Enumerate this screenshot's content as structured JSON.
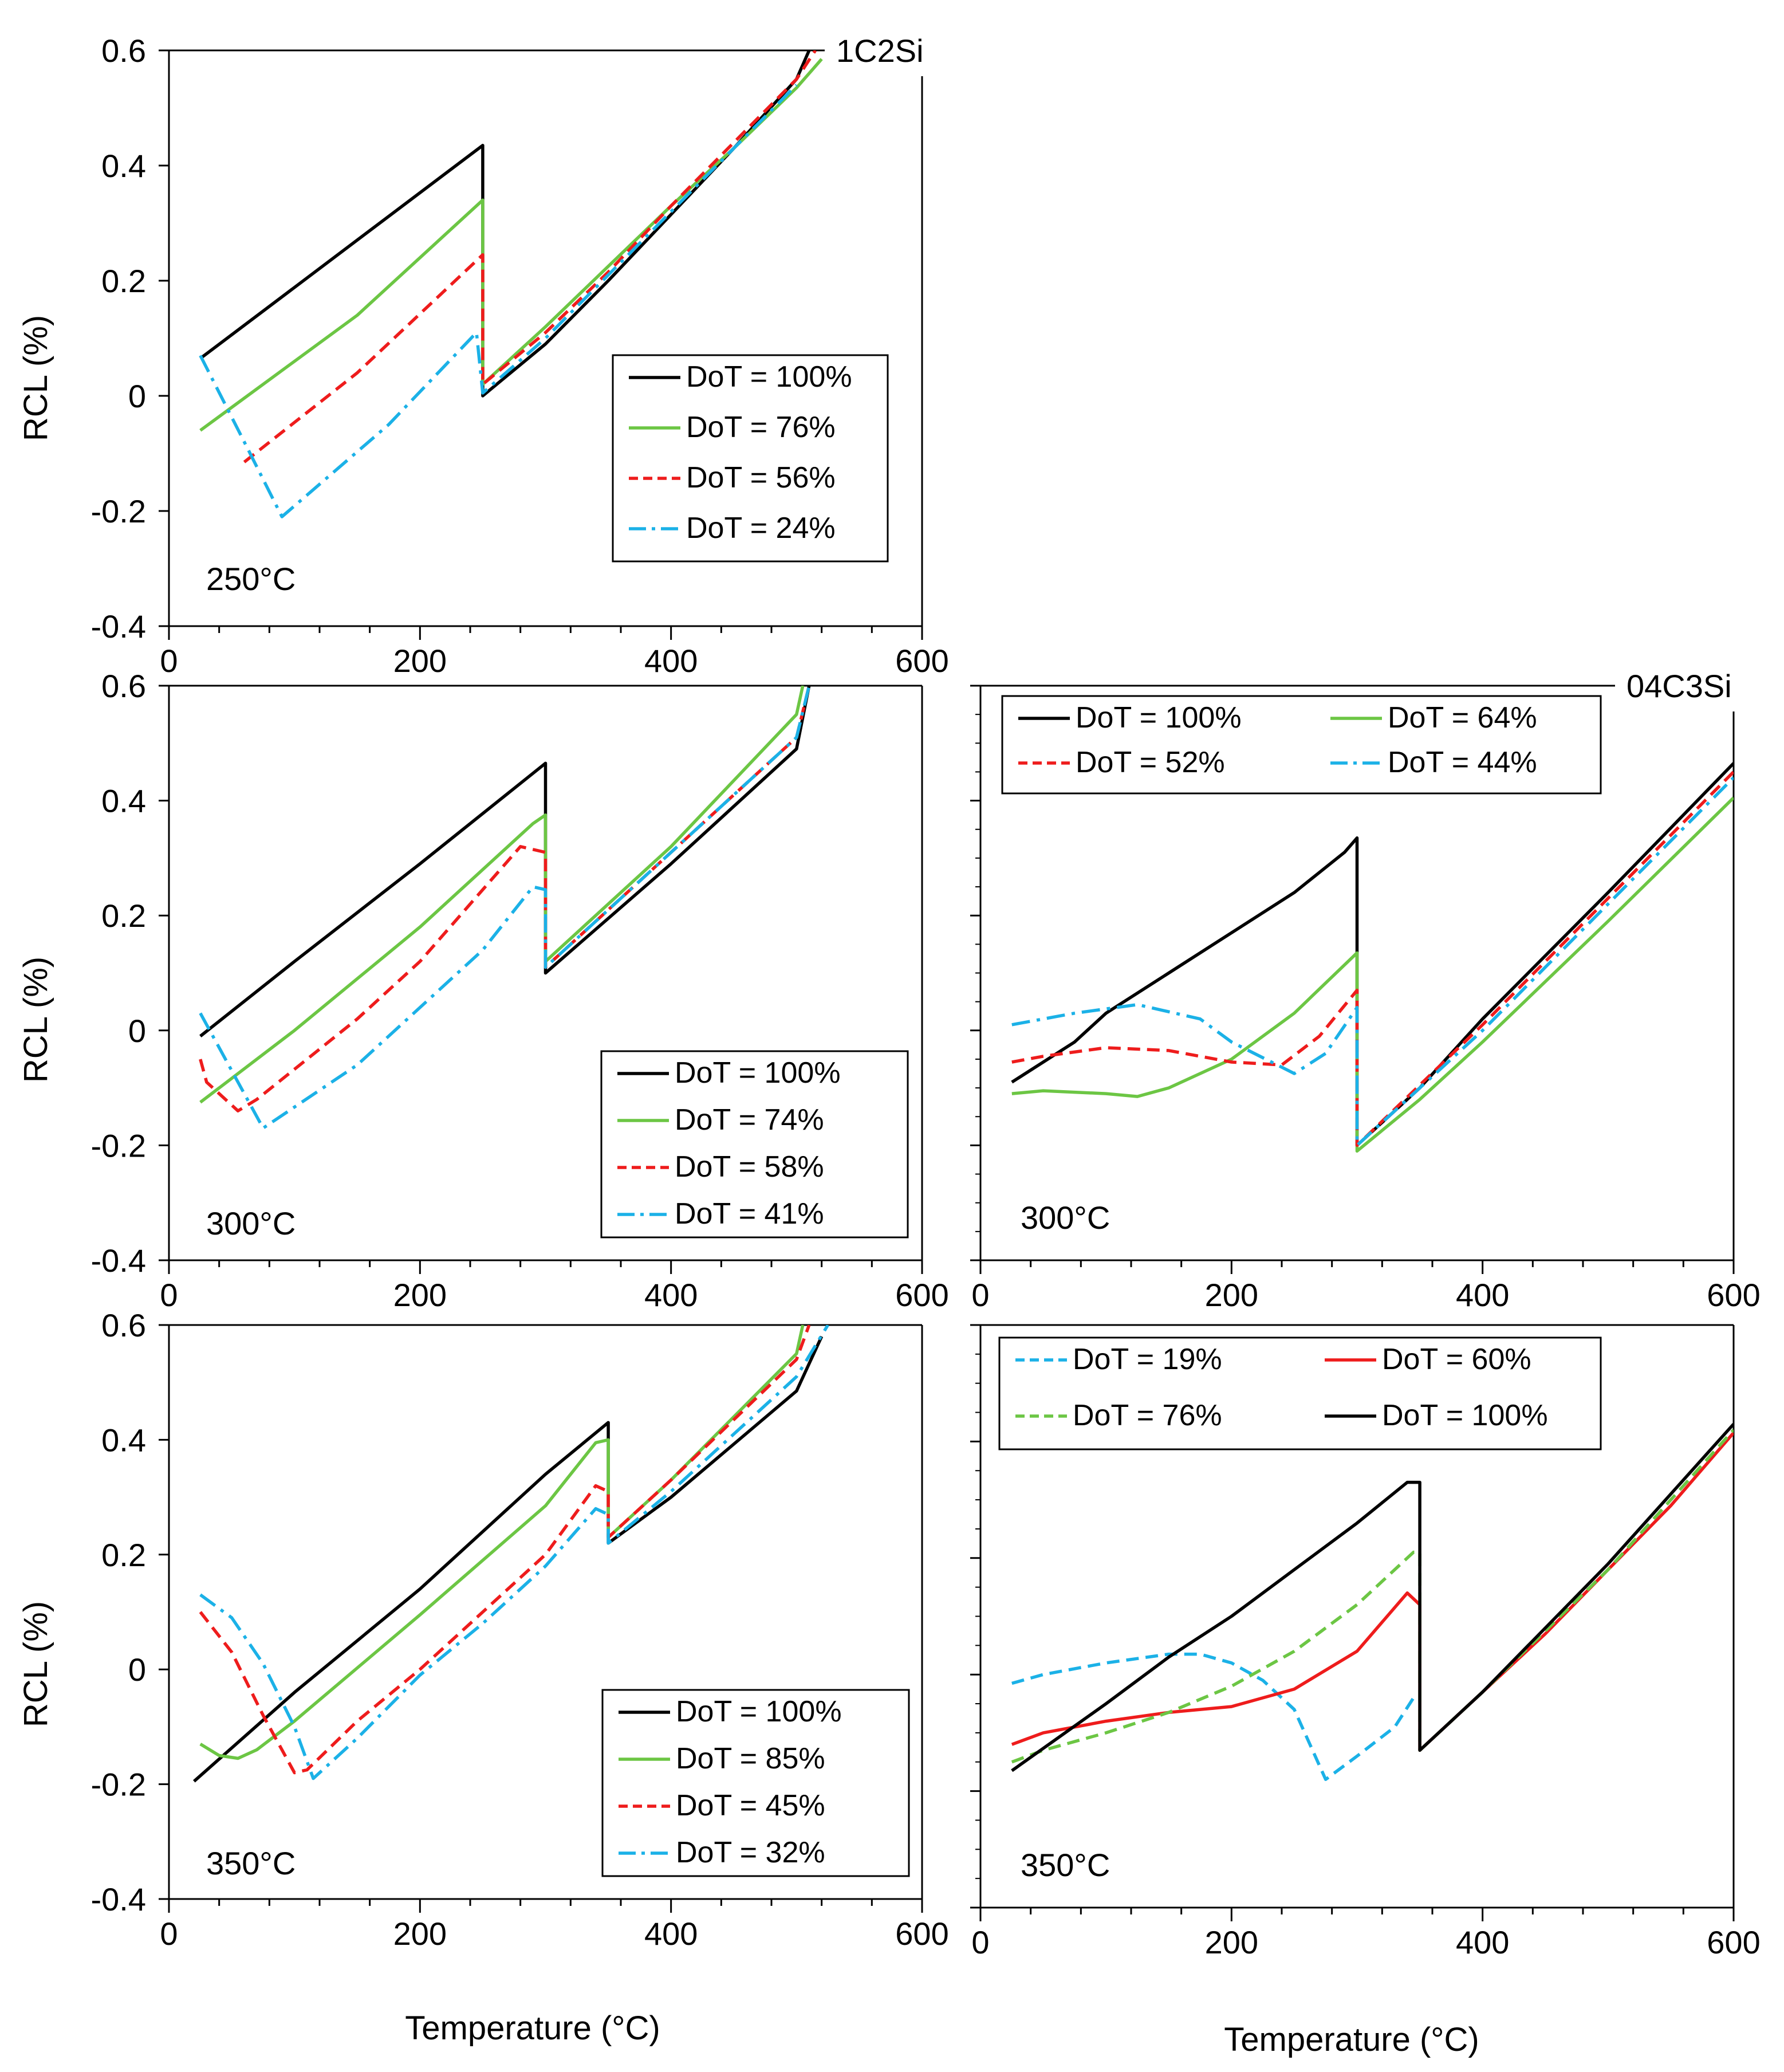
{
  "figure": {
    "ylabel": "RCL (%)",
    "xlabel": "Temperature (°C)",
    "colors": {
      "black": "#000000",
      "green": "#6cc644",
      "red": "#ee1c1c",
      "cyan": "#1bb1e7"
    }
  },
  "chart_data": [
    {
      "id": "p1",
      "type": "line",
      "material": "1C2Si",
      "condition": "250°C",
      "xlim": [
        0,
        600
      ],
      "ylim": [
        -0.4,
        0.6
      ],
      "xticks": [
        "0",
        "200",
        "400",
        "600"
      ],
      "yticks": [
        "-0.4",
        "-0.2",
        "0",
        "0.2",
        "0.4",
        "0.6"
      ],
      "legend": {
        "columns": 1,
        "position": "center-right"
      },
      "series": [
        {
          "name": "DoT = 100%",
          "color": "#000000",
          "style": "solid",
          "x": [
            25,
            250,
            250,
            300,
            350,
            400,
            450,
            500,
            510
          ],
          "y": [
            0.065,
            0.435,
            0.0,
            0.09,
            0.2,
            0.315,
            0.43,
            0.55,
            0.6
          ]
        },
        {
          "name": "DoT = 76%",
          "color": "#6cc644",
          "style": "solid",
          "x": [
            25,
            50,
            150,
            250,
            250,
            300,
            350,
            400,
            450,
            500,
            520
          ],
          "y": [
            -0.06,
            -0.02,
            0.14,
            0.34,
            0.02,
            0.12,
            0.225,
            0.33,
            0.43,
            0.535,
            0.585
          ]
        },
        {
          "name": "DoT = 56%",
          "color": "#ee1c1c",
          "style": "dash",
          "x": [
            60,
            150,
            250,
            250,
            300,
            350,
            400,
            450,
            500,
            515
          ],
          "y": [
            -0.115,
            0.04,
            0.245,
            0.02,
            0.11,
            0.215,
            0.33,
            0.44,
            0.55,
            0.6
          ]
        },
        {
          "name": "DoT = 24%",
          "color": "#1bb1e7",
          "style": "dashdot",
          "x": [
            25,
            60,
            90,
            175,
            245,
            250,
            300,
            350,
            400,
            450,
            500
          ],
          "y": [
            0.07,
            -0.08,
            -0.21,
            -0.05,
            0.11,
            0.005,
            0.1,
            0.21,
            0.32,
            0.43,
            0.54
          ]
        }
      ]
    },
    {
      "id": "p2",
      "type": "line",
      "material": "1C2Si",
      "condition": "300°C",
      "xlim": [
        0,
        600
      ],
      "ylim": [
        -0.4,
        0.6
      ],
      "xticks": [
        "0",
        "200",
        "400",
        "600"
      ],
      "yticks": [
        "-0.4",
        "-0.2",
        "0",
        "0.2",
        "0.4",
        "0.6"
      ],
      "legend": {
        "columns": 1,
        "position": "bottom-right"
      },
      "series": [
        {
          "name": "DoT = 100%",
          "color": "#000000",
          "style": "solid",
          "x": [
            25,
            100,
            200,
            300,
            300,
            400,
            500,
            510
          ],
          "y": [
            -0.01,
            0.12,
            0.29,
            0.465,
            0.1,
            0.29,
            0.49,
            0.6
          ]
        },
        {
          "name": "DoT = 74%",
          "color": "#6cc644",
          "style": "solid",
          "x": [
            25,
            100,
            200,
            290,
            300,
            300,
            400,
            450,
            500,
            505
          ],
          "y": [
            -0.125,
            0.0,
            0.18,
            0.36,
            0.375,
            0.12,
            0.32,
            0.435,
            0.55,
            0.6
          ]
        },
        {
          "name": "DoT = 58%",
          "color": "#ee1c1c",
          "style": "dash",
          "x": [
            25,
            30,
            55,
            70,
            150,
            200,
            280,
            300,
            300,
            400,
            500,
            510
          ],
          "y": [
            -0.05,
            -0.09,
            -0.14,
            -0.12,
            0.02,
            0.12,
            0.32,
            0.31,
            0.11,
            0.31,
            0.51,
            0.6
          ]
        },
        {
          "name": "DoT = 41%",
          "color": "#1bb1e7",
          "style": "dashdot",
          "x": [
            25,
            50,
            75,
            150,
            250,
            290,
            300,
            300,
            400,
            500,
            510
          ],
          "y": [
            0.03,
            -0.07,
            -0.17,
            -0.06,
            0.14,
            0.25,
            0.245,
            0.11,
            0.31,
            0.51,
            0.6
          ]
        }
      ]
    },
    {
      "id": "p3",
      "type": "line",
      "material": "04C3Si",
      "condition": "300°C",
      "xlim": [
        0,
        600
      ],
      "ylim": [
        -0.4,
        0.6
      ],
      "xticks": [
        "0",
        "200",
        "400",
        "600"
      ],
      "yticks": [],
      "legend": {
        "columns": 2,
        "position": "top-left"
      },
      "series": [
        {
          "name": "DoT = 100%",
          "color": "#000000",
          "style": "solid",
          "x": [
            25,
            75,
            100,
            150,
            200,
            250,
            290,
            300,
            300,
            350,
            400,
            500,
            600
          ],
          "y": [
            -0.09,
            -0.02,
            0.03,
            0.1,
            0.17,
            0.24,
            0.31,
            0.335,
            -0.2,
            -0.1,
            0.02,
            0.24,
            0.465
          ]
        },
        {
          "name": "DoT = 64%",
          "color": "#6cc644",
          "style": "solid",
          "x": [
            25,
            50,
            100,
            125,
            150,
            200,
            250,
            300,
            300,
            350,
            400,
            500,
            600
          ],
          "y": [
            -0.11,
            -0.105,
            -0.11,
            -0.115,
            -0.1,
            -0.05,
            0.03,
            0.135,
            -0.21,
            -0.12,
            -0.02,
            0.19,
            0.405
          ]
        },
        {
          "name": "DoT = 52%",
          "color": "#ee1c1c",
          "style": "dash",
          "x": [
            25,
            50,
            100,
            150,
            200,
            240,
            270,
            300,
            300,
            400,
            500,
            600
          ],
          "y": [
            -0.055,
            -0.045,
            -0.03,
            -0.035,
            -0.055,
            -0.06,
            -0.01,
            0.07,
            -0.2,
            0.01,
            0.23,
            0.45
          ]
        },
        {
          "name": "DoT = 44%",
          "color": "#1bb1e7",
          "style": "dashdot",
          "x": [
            25,
            75,
            125,
            175,
            200,
            250,
            275,
            300,
            300,
            400,
            500,
            600
          ],
          "y": [
            0.01,
            0.03,
            0.045,
            0.02,
            -0.02,
            -0.075,
            -0.04,
            0.04,
            -0.2,
            0.0,
            0.22,
            0.44
          ]
        }
      ]
    },
    {
      "id": "p4",
      "type": "line",
      "material": "1C2Si",
      "condition": "350°C",
      "xlim": [
        0,
        600
      ],
      "ylim": [
        -0.4,
        0.6
      ],
      "xticks": [
        "0",
        "200",
        "400",
        "600"
      ],
      "yticks": [
        "-0.4",
        "-0.2",
        "0",
        "0.2",
        "0.4",
        "0.6"
      ],
      "legend": {
        "columns": 1,
        "position": "bottom-right"
      },
      "series": [
        {
          "name": "DoT = 100%",
          "color": "#000000",
          "style": "solid",
          "x": [
            20,
            100,
            200,
            300,
            350,
            350,
            400,
            500,
            520
          ],
          "y": [
            -0.195,
            -0.04,
            0.14,
            0.34,
            0.43,
            0.22,
            0.3,
            0.485,
            0.58
          ]
        },
        {
          "name": "DoT = 85%",
          "color": "#6cc644",
          "style": "solid",
          "x": [
            25,
            40,
            55,
            70,
            100,
            200,
            300,
            340,
            350,
            350,
            400,
            500,
            505
          ],
          "y": [
            -0.13,
            -0.15,
            -0.155,
            -0.14,
            -0.09,
            0.095,
            0.285,
            0.395,
            0.4,
            0.23,
            0.33,
            0.55,
            0.6
          ]
        },
        {
          "name": "DoT = 45%",
          "color": "#ee1c1c",
          "style": "dash",
          "x": [
            25,
            50,
            75,
            100,
            110,
            150,
            200,
            250,
            300,
            340,
            350,
            350,
            400,
            500,
            510
          ],
          "y": [
            0.1,
            0.03,
            -0.08,
            -0.18,
            -0.175,
            -0.09,
            0.0,
            0.1,
            0.2,
            0.32,
            0.31,
            0.23,
            0.33,
            0.54,
            0.6
          ]
        },
        {
          "name": "DoT = 32%",
          "color": "#1bb1e7",
          "style": "dashdot",
          "x": [
            25,
            50,
            75,
            100,
            115,
            150,
            200,
            250,
            300,
            340,
            350,
            350,
            400,
            500,
            525
          ],
          "y": [
            0.13,
            0.09,
            0.01,
            -0.1,
            -0.19,
            -0.12,
            -0.01,
            0.08,
            0.18,
            0.28,
            0.27,
            0.22,
            0.31,
            0.51,
            0.6
          ]
        }
      ]
    },
    {
      "id": "p5",
      "type": "line",
      "material": "04C3Si",
      "condition": "350°C",
      "xlim": [
        0,
        600
      ],
      "ylim": [
        -0.4,
        0.6
      ],
      "xticks": [
        "0",
        "200",
        "400",
        "600"
      ],
      "yticks": [],
      "legend": {
        "columns": 2,
        "position": "top-left"
      },
      "series": [
        {
          "name": "DoT =  19%",
          "color": "#1bb1e7",
          "style": "dash",
          "x": [
            25,
            50,
            100,
            150,
            175,
            200,
            225,
            250,
            275,
            300,
            330,
            345
          ],
          "y": [
            -0.015,
            0.0,
            0.02,
            0.035,
            0.035,
            0.02,
            -0.01,
            -0.06,
            -0.18,
            -0.14,
            -0.09,
            -0.04
          ]
        },
        {
          "name": "DoT = 60%",
          "color": "#ee1c1c",
          "style": "solid",
          "x": [
            25,
            50,
            100,
            150,
            200,
            250,
            300,
            340,
            350,
            350,
            400,
            450,
            500,
            550,
            600
          ],
          "y": [
            -0.12,
            -0.1,
            -0.08,
            -0.065,
            -0.055,
            -0.025,
            0.04,
            0.14,
            0.12,
            -0.13,
            -0.03,
            0.07,
            0.18,
            0.29,
            0.415
          ]
        },
        {
          "name": "DoT = 76%",
          "color": "#6cc644",
          "style": "dash",
          "x": [
            25,
            50,
            100,
            150,
            200,
            250,
            300,
            345,
            350,
            350,
            400,
            500,
            600
          ],
          "y": [
            -0.15,
            -0.13,
            -0.1,
            -0.065,
            -0.02,
            0.04,
            0.12,
            0.21,
            0.21,
            -0.13,
            -0.03,
            0.18,
            0.42
          ]
        },
        {
          "name": "DoT = 100%",
          "color": "#000000",
          "style": "solid",
          "x": [
            25,
            100,
            150,
            200,
            250,
            300,
            340,
            350,
            350,
            400,
            500,
            600
          ],
          "y": [
            -0.165,
            -0.05,
            0.03,
            0.1,
            0.18,
            0.26,
            0.33,
            0.33,
            -0.13,
            -0.03,
            0.19,
            0.43
          ]
        }
      ]
    }
  ]
}
